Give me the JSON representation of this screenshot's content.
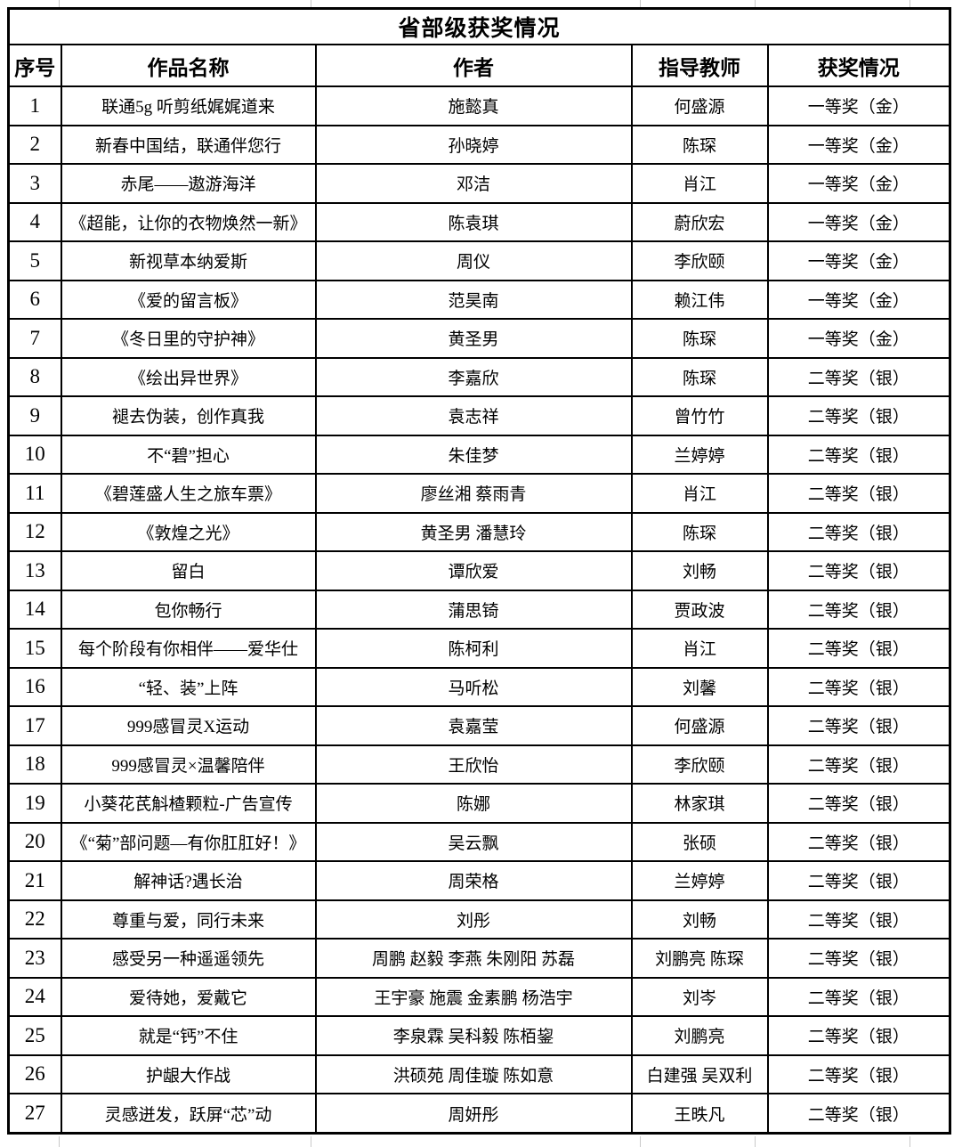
{
  "page": {
    "background": "#ffffff",
    "table_border_color": "#000000",
    "gridline_color": "#c9c9c9"
  },
  "table": {
    "title": "省部级获奖情况",
    "columns": [
      {
        "key": "no",
        "label": "序号"
      },
      {
        "key": "work",
        "label": "作品名称"
      },
      {
        "key": "authors",
        "label": "作者"
      },
      {
        "key": "teacher",
        "label": "指导教师"
      },
      {
        "key": "award",
        "label": "获奖情况"
      }
    ],
    "rows": [
      {
        "no": "1",
        "work": "联通5g 听剪纸娓娓道来",
        "authors": "施懿真",
        "teacher": "何盛源",
        "award": "一等奖（金）"
      },
      {
        "no": "2",
        "work": "新春中国结，联通伴您行",
        "authors": "孙晓婷",
        "teacher": "陈琛",
        "award": "一等奖（金）"
      },
      {
        "no": "3",
        "work": "赤尾——遨游海洋",
        "authors": "邓洁",
        "teacher": "肖江",
        "award": "一等奖（金）"
      },
      {
        "no": "4",
        "work": "《超能，让你的衣物焕然一新》",
        "authors": "陈袁琪",
        "teacher": "蔚欣宏",
        "award": "一等奖（金）"
      },
      {
        "no": "5",
        "work": "新视草本纳爱斯",
        "authors": "周仪",
        "teacher": "李欣颐",
        "award": "一等奖（金）"
      },
      {
        "no": "6",
        "work": "《爱的留言板》",
        "authors": "范昊南",
        "teacher": "赖江伟",
        "award": "一等奖（金）"
      },
      {
        "no": "7",
        "work": "《冬日里的守护神》",
        "authors": "黄圣男",
        "teacher": "陈琛",
        "award": "一等奖（金）"
      },
      {
        "no": "8",
        "work": "《绘出异世界》",
        "authors": "李嘉欣",
        "teacher": "陈琛",
        "award": "二等奖（银）"
      },
      {
        "no": "9",
        "work": "褪去伪装，创作真我",
        "authors": "袁志祥",
        "teacher": "曾竹竹",
        "award": "二等奖（银）"
      },
      {
        "no": "10",
        "work": "不“碧”担心",
        "authors": "朱佳梦",
        "teacher": "兰婷婷",
        "award": "二等奖（银）"
      },
      {
        "no": "11",
        "work": "《碧莲盛人生之旅车票》",
        "authors": "廖丝湘 蔡雨青",
        "teacher": "肖江",
        "award": "二等奖（银）"
      },
      {
        "no": "12",
        "work": "《敦煌之光》",
        "authors": "黄圣男 潘慧玲",
        "teacher": "陈琛",
        "award": "二等奖（银）"
      },
      {
        "no": "13",
        "work": "留白",
        "authors": "谭欣爱",
        "teacher": "刘畅",
        "award": "二等奖（银）"
      },
      {
        "no": "14",
        "work": "包你畅行",
        "authors": "蒲思锜",
        "teacher": "贾政波",
        "award": "二等奖（银）"
      },
      {
        "no": "15",
        "work": "每个阶段有你相伴——爱华仕",
        "authors": "陈柯利",
        "teacher": "肖江",
        "award": "二等奖（银）"
      },
      {
        "no": "16",
        "work": "“轻、装”上阵",
        "authors": "马听松",
        "teacher": "刘馨",
        "award": "二等奖（银）"
      },
      {
        "no": "17",
        "work": "999感冒灵X运动",
        "authors": "袁嘉莹",
        "teacher": "何盛源",
        "award": "二等奖（银）"
      },
      {
        "no": "18",
        "work": "999感冒灵×温馨陪伴",
        "authors": "王欣怡",
        "teacher": "李欣颐",
        "award": "二等奖（银）"
      },
      {
        "no": "19",
        "work": "小葵花芪斛楂颗粒-广告宣传",
        "authors": "陈娜",
        "teacher": "林家琪",
        "award": "二等奖（银）"
      },
      {
        "no": "20",
        "work": "《“菊”部问题—有你肛肛好！》",
        "authors": "吴云飘",
        "teacher": "张硕",
        "award": "二等奖（银）"
      },
      {
        "no": "21",
        "work": "解神话?遇长治",
        "authors": "周荣格",
        "teacher": "兰婷婷",
        "award": "二等奖（银）"
      },
      {
        "no": "22",
        "work": "尊重与爱，同行未来",
        "authors": "刘彤",
        "teacher": "刘畅",
        "award": "二等奖（银）"
      },
      {
        "no": "23",
        "work": "感受另一种遥遥领先",
        "authors": "周鹏 赵毅 李燕 朱刚阳 苏磊",
        "teacher": "刘鹏亮 陈琛",
        "award": "二等奖（银）"
      },
      {
        "no": "24",
        "work": "爱待她，爱戴它",
        "authors": "王宇豪 施震 金素鹏 杨浩宇",
        "teacher": "刘岑",
        "award": "二等奖（银）"
      },
      {
        "no": "25",
        "work": "就是“钙”不住",
        "authors": "李泉霖 吴科毅 陈栢鋆",
        "teacher": "刘鹏亮",
        "award": "二等奖（银）"
      },
      {
        "no": "26",
        "work": "护龈大作战",
        "authors": "洪硕苑 周佳璇 陈如意",
        "teacher": "白建强 吴双利",
        "award": "二等奖（银）"
      },
      {
        "no": "27",
        "work": "灵感迸发，跃屏“芯”动",
        "authors": "周妍彤",
        "teacher": "王昳凡",
        "award": "二等奖（银）"
      }
    ]
  },
  "gridstub_positions": [
    66,
    349,
    719,
    848,
    1022
  ]
}
